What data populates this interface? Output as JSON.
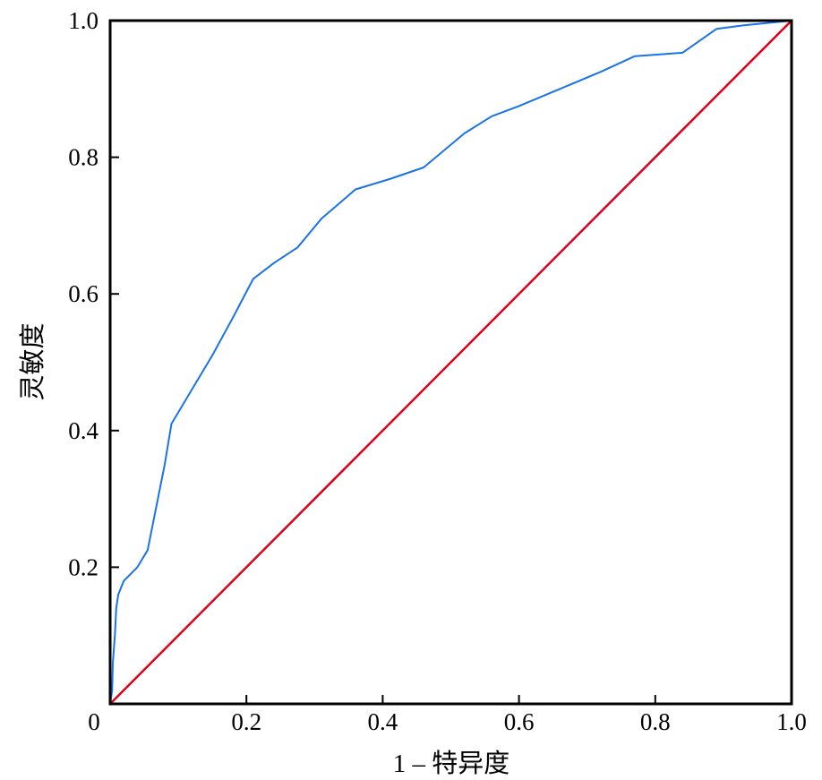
{
  "chart_data": {
    "type": "line",
    "xlabel": "1 – 特异度",
    "ylabel": "灵敏度",
    "xlim": [
      0,
      1
    ],
    "ylim": [
      0,
      1
    ],
    "x_ticks": [
      0,
      0.2,
      0.4,
      0.6,
      0.8,
      1.0
    ],
    "x_tick_labels": [
      "0",
      "0.2",
      "0.4",
      "0.6",
      "0.8",
      "1.0"
    ],
    "y_ticks": [
      0.2,
      0.4,
      0.6,
      0.8,
      1.0
    ],
    "y_tick_labels": [
      "0.2",
      "0.4",
      "0.6",
      "0.8",
      "1.0"
    ],
    "grid": false,
    "legend": false,
    "series": [
      {
        "color": "#1a73e8",
        "x": [
          0,
          0.003,
          0.004,
          0.007,
          0.009,
          0.012,
          0.02,
          0.04,
          0.055,
          0.07,
          0.08,
          0.09,
          0.12,
          0.15,
          0.18,
          0.21,
          0.24,
          0.275,
          0.31,
          0.36,
          0.41,
          0.46,
          0.52,
          0.56,
          0.6,
          0.66,
          0.72,
          0.77,
          0.8,
          0.84,
          0.89,
          0.93,
          1.0
        ],
        "y": [
          0,
          0.02,
          0.06,
          0.1,
          0.14,
          0.16,
          0.18,
          0.2,
          0.225,
          0.3,
          0.35,
          0.41,
          0.46,
          0.51,
          0.565,
          0.622,
          0.645,
          0.668,
          0.71,
          0.753,
          0.768,
          0.785,
          0.835,
          0.86,
          0.875,
          0.9,
          0.925,
          0.948,
          0.95,
          0.953,
          0.988,
          0.993,
          1.0
        ]
      },
      {
        "color": "#e0001b",
        "x": [
          0,
          1
        ],
        "y": [
          0,
          1
        ]
      }
    ]
  }
}
